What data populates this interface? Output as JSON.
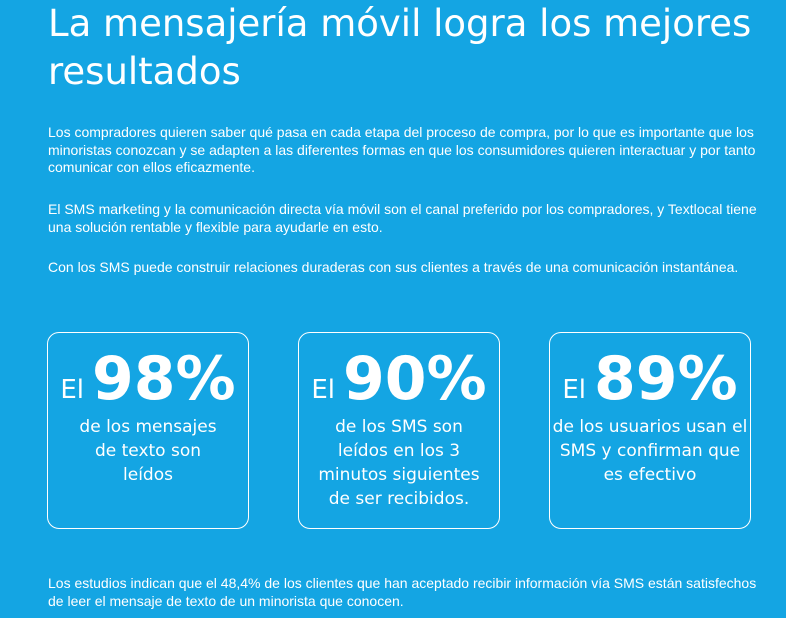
{
  "title": "La mensajería móvil logra los mejores resultados",
  "paragraphs": [
    "Los compradores quieren saber qué pasa en cada etapa del proceso de compra, por lo que es importante que los minoristas conozcan y se adapten a las diferentes formas en que los consumidores quieren interactuar y por tanto comunicar con ellos eficazmente.",
    "El SMS marketing y la comunicación directa vía móvil son el canal preferido por los compradores, y Textlocal tiene una solución rentable y flexible para ayudarle en esto.",
    "Con los SMS puede construir relaciones duraderas con sus clientes a través de una comunicación instantánea."
  ],
  "stats": [
    {
      "prefix": "El",
      "value": "98%",
      "description": "de los mensajes de texto son leídos"
    },
    {
      "prefix": "El",
      "value": "90%",
      "description": "de los SMS son leídos en los 3 minutos siguientes de ser recibidos."
    },
    {
      "prefix": "El",
      "value": "89%",
      "description": "de los usuarios usan el SMS y confirman que es efectivo"
    }
  ],
  "footer": "Los estudios indican que el 48,4% de los clientes que han aceptado recibir información vía SMS están satisfechos de leer el mensaje de texto de un minorista que conocen.",
  "colors": {
    "background": "#14a5e3",
    "text": "#ffffff"
  }
}
